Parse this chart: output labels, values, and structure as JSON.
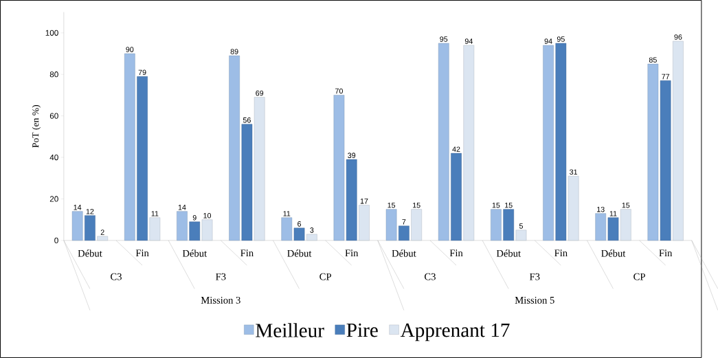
{
  "chart_data": {
    "type": "bar",
    "ylabel": "PoT (en %)",
    "categories": [
      "Début",
      "Fin",
      "Début",
      "Fin",
      "Début",
      "Fin",
      "Début",
      "Fin",
      "Début",
      "Fin",
      "Début",
      "Fin"
    ],
    "series": [
      {
        "name": "Meilleur",
        "color": "#9dbde6",
        "values": [
          14,
          90,
          14,
          89,
          11,
          70,
          15,
          95,
          15,
          94,
          13,
          85
        ]
      },
      {
        "name": "Pire",
        "color": "#4a7ebb",
        "values": [
          12,
          79,
          9,
          56,
          6,
          39,
          7,
          42,
          15,
          95,
          11,
          77
        ]
      },
      {
        "name": "Apprenant 17",
        "color": "#dbe5f1",
        "values": [
          2,
          11,
          10,
          69,
          3,
          17,
          15,
          94,
          5,
          31,
          15,
          96
        ]
      }
    ],
    "annotations": [
      "C3",
      "F3",
      "CP",
      "C3",
      "F3",
      "CP",
      "Mission 3",
      "Mission 5"
    ],
    "ylim": [
      0,
      110
    ],
    "yticks": [
      0,
      20,
      40,
      60,
      80,
      100
    ],
    "grid": false,
    "legend": "bottom",
    "data_labels": true
  }
}
